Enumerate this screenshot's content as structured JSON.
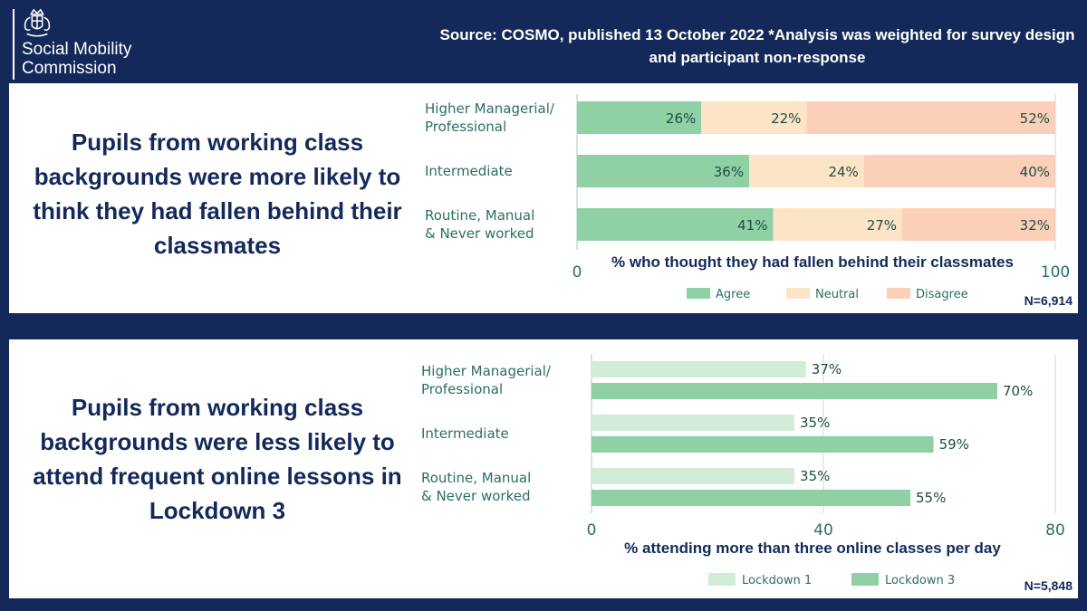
{
  "brand": {
    "name": "Social Mobility\nCommission"
  },
  "source_note": "Source: COSMO, published 13 October 2022 *Analysis was weighted for survey design and participant non-response",
  "colors": {
    "navy": "#14295a",
    "agree": "#8fd1a5",
    "neutral": "#fce5c6",
    "disagree": "#fccfb8",
    "lockdown1": "#d3ecd9",
    "lockdown3": "#8fd1a5"
  },
  "panel1": {
    "headline": "Pupils from working class backgrounds were more likely to think they had fallen behind their classmates",
    "n_label": "N=6,914"
  },
  "panel2": {
    "headline": "Pupils from working class backgrounds were less likely to attend frequent online lessons in Lockdown 3",
    "n_label": "N=5,848"
  },
  "chart_data": [
    {
      "type": "bar",
      "orientation": "horizontal",
      "stacked": true,
      "categories": [
        [
          "Higher Managerial/",
          "Professional"
        ],
        [
          "Intermediate"
        ],
        [
          "Routine, Manual",
          "& Never worked"
        ]
      ],
      "series": [
        {
          "name": "Agree",
          "values": [
            26,
            36,
            41
          ],
          "labels": [
            "26%",
            "36%",
            "41%"
          ]
        },
        {
          "name": "Neutral",
          "values": [
            22,
            24,
            27
          ],
          "labels": [
            "22%",
            "24%",
            "27%"
          ]
        },
        {
          "name": "Disagree",
          "values": [
            52,
            40,
            32
          ],
          "labels": [
            "52%",
            "40%",
            "32%"
          ]
        }
      ],
      "xlabel": "% who thought they had fallen behind their classmates",
      "xlim": [
        0,
        100
      ],
      "xticks": [
        "0",
        "100"
      ],
      "legend": "bottom"
    },
    {
      "type": "bar",
      "orientation": "horizontal",
      "stacked": false,
      "categories": [
        [
          "Higher Managerial/",
          "Professional"
        ],
        [
          "Intermediate"
        ],
        [
          "Routine, Manual",
          "& Never worked"
        ]
      ],
      "series": [
        {
          "name": "Lockdown 1",
          "values": [
            37,
            35,
            35
          ],
          "labels": [
            "37%",
            "35%",
            "35%"
          ]
        },
        {
          "name": "Lockdown 3",
          "values": [
            70,
            59,
            55
          ],
          "labels": [
            "70%",
            "59%",
            "55%"
          ]
        }
      ],
      "xlabel": "% attending more than three online classes per day",
      "xlim": [
        0,
        80
      ],
      "xticks": [
        "0",
        "40",
        "80"
      ],
      "gridlines": true,
      "legend": "bottom"
    }
  ]
}
